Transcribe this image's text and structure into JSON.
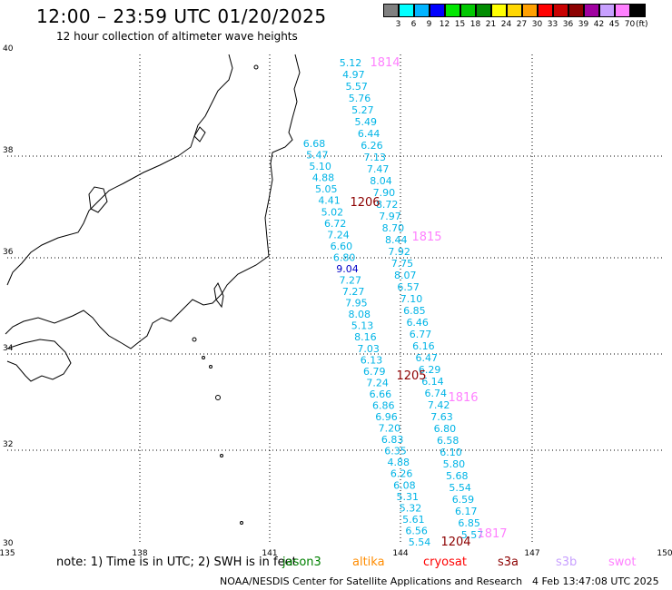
{
  "title": "12:00 – 23:59 UTC 01/20/2025",
  "subtitle": "12 hour collection of altimeter wave heights",
  "color_scale": {
    "unit": "(ft)",
    "bins": [
      {
        "label": "3",
        "color": "#808080"
      },
      {
        "label": "6",
        "color": "#00ffff"
      },
      {
        "label": "9",
        "color": "#00b4ff"
      },
      {
        "label": "12",
        "color": "#0000ff"
      },
      {
        "label": "15",
        "color": "#00e600"
      },
      {
        "label": "18",
        "color": "#00c800"
      },
      {
        "label": "21",
        "color": "#008c00"
      },
      {
        "label": "24",
        "color": "#ffff00"
      },
      {
        "label": "27",
        "color": "#ffd700"
      },
      {
        "label": "30",
        "color": "#ffa000"
      },
      {
        "label": "33",
        "color": "#ff0000"
      },
      {
        "label": "36",
        "color": "#c80000"
      },
      {
        "label": "39",
        "color": "#8c0000"
      },
      {
        "label": "42",
        "color": "#a000a0"
      },
      {
        "label": "45",
        "color": "#c8a0ff"
      },
      {
        "label": "70",
        "color": "#ff80ff"
      },
      {
        "label": "",
        "color": "#000000"
      }
    ]
  },
  "axes": {
    "lon_labels": [
      "135",
      "138",
      "141",
      "144",
      "147",
      "150"
    ],
    "lat_labels": [
      "30",
      "32",
      "34",
      "36",
      "38",
      "40"
    ]
  },
  "pass_times": [
    {
      "label": "1814",
      "color": "#ff80ff"
    },
    {
      "label": "1206",
      "color": "#8c0000"
    },
    {
      "label": "1815",
      "color": "#ff80ff"
    },
    {
      "label": "1205",
      "color": "#8c0000"
    },
    {
      "label": "1816",
      "color": "#ff80ff"
    },
    {
      "label": "1817",
      "color": "#ff80ff"
    },
    {
      "label": "1204",
      "color": "#8c0000"
    }
  ],
  "track_a": [
    "5.12",
    "4.97",
    "5.57",
    "5.76",
    "5.27",
    "5.49",
    "6.44",
    "6.26",
    "7.13",
    "7.47",
    "8.04",
    "7.90",
    "8.72",
    "7.97",
    "8.70",
    "8.44",
    "7.92",
    "7.75",
    "8.07",
    "6.57",
    "7.10",
    "6.85",
    "6.46",
    "6.77",
    "6.16",
    "6.47",
    "6.29",
    "6.14",
    "6.74",
    "7.42",
    "7.63",
    "6.80",
    "6.58",
    "6.10",
    "5.80",
    "5.68",
    "5.54",
    "6.59",
    "6.17",
    "6.85",
    "5.57"
  ],
  "track_b": [
    "6.68",
    "5.47",
    "5.10",
    "4.88",
    "5.05",
    "4.41",
    "5.02",
    "6.72",
    "7.24",
    "6.60",
    "6.80",
    "9.04",
    "7.27",
    "7.27",
    "7.95",
    "8.08",
    "5.13",
    "8.16",
    "7.03",
    "6.13",
    "6.79",
    "7.24",
    "6.66",
    "6.86",
    "6.96",
    "7.20",
    "6.83",
    "6.35",
    "4.88",
    "6.26",
    "6.08",
    "5.31",
    "5.32",
    "5.61",
    "6.56",
    "5.54"
  ],
  "footer": {
    "note": "note:  1) Time is in UTC;  2) SWH is in feet",
    "missions": [
      {
        "label": "jason3",
        "color": "#008000"
      },
      {
        "label": "altika",
        "color": "#ff8c00"
      },
      {
        "label": "cryosat",
        "color": "#ff0000"
      },
      {
        "label": "s3a",
        "color": "#8c0000"
      },
      {
        "label": "s3b",
        "color": "#c8a0ff"
      },
      {
        "label": "swot",
        "color": "#ff80ff"
      }
    ],
    "credit": "NOAA/NESDIS Center for Satellite Applications and Research",
    "timestamp": "4 Feb 13:47:08 UTC 2025"
  }
}
